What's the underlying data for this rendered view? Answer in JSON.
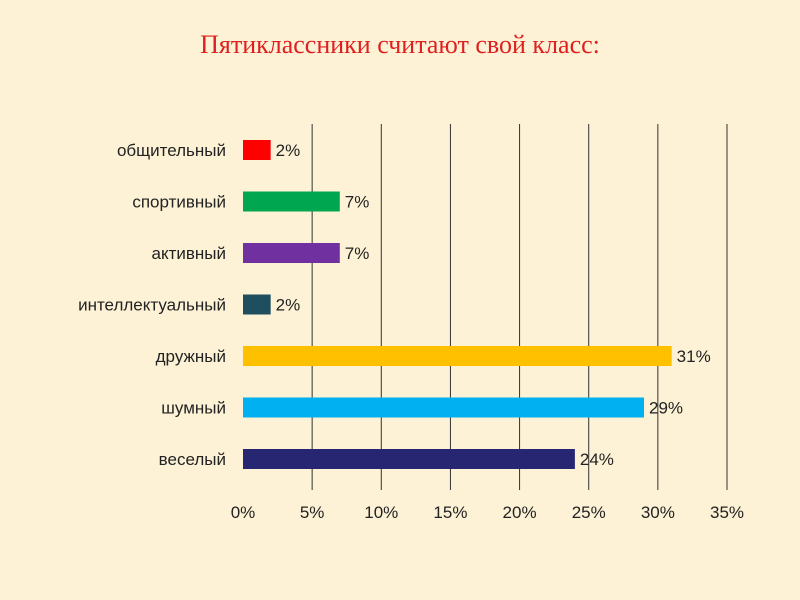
{
  "title": "Пятиклассники считают свой класс:",
  "chart_data": {
    "type": "bar",
    "orientation": "horizontal",
    "title": "Пятиклассники считают свой класс:",
    "categories": [
      "общительный",
      "спортивный",
      "активный",
      "интеллектуальный",
      "дружный",
      "шумный",
      "веселый"
    ],
    "values": [
      2,
      7,
      7,
      2,
      31,
      29,
      24
    ],
    "value_labels": [
      "2%",
      "7%",
      "7%",
      "2%",
      "31%",
      "29%",
      "24%"
    ],
    "colors": [
      "#ff0000",
      "#00a650",
      "#7030a0",
      "#1f4e5f",
      "#ffc000",
      "#00b0f0",
      "#262673"
    ],
    "xlim": [
      0,
      35
    ],
    "x_ticks": [
      0,
      5,
      10,
      15,
      20,
      25,
      30,
      35
    ],
    "x_tick_labels": [
      "0%",
      "5%",
      "10%",
      "15%",
      "20%",
      "25%",
      "30%",
      "35%"
    ],
    "grid": true,
    "legend": "none"
  }
}
